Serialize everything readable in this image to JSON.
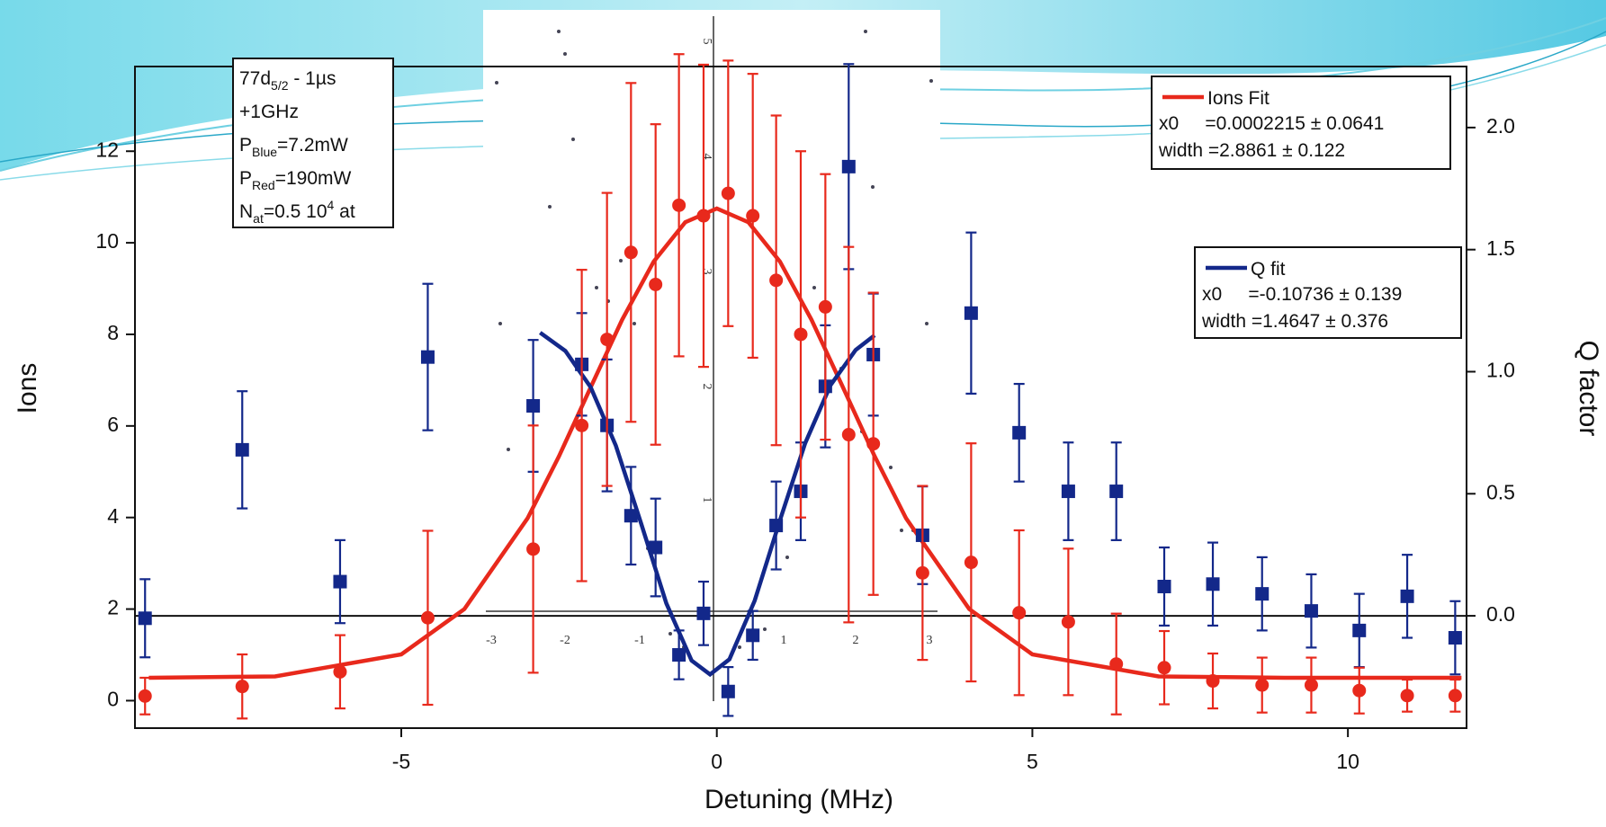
{
  "chart_data": {
    "type": "scatter",
    "xlabel": "Detuning (MHz)",
    "ylabel": "Ions",
    "y2label": "Q factor",
    "xlim": [
      -9.22,
      11.88
    ],
    "ylim": [
      -0.6,
      13.85
    ],
    "y2lim": [
      -0.46,
      2.25
    ],
    "xticks": [
      -5,
      0,
      5,
      10
    ],
    "yticks": [
      0,
      2,
      4,
      6,
      8,
      10,
      12
    ],
    "y2ticks": [
      {
        "value": 0,
        "label": "0.0"
      },
      0.5,
      {
        "value": 1,
        "label": "1.0"
      },
      1.5,
      {
        "value": 2,
        "label": "2.0"
      }
    ],
    "series": [
      {
        "color": "#e8291c",
        "marker": "circle",
        "x": [
          -9.06,
          -7.52,
          -5.97,
          -4.58,
          -2.91,
          -2.14,
          -1.74,
          -1.36,
          -0.97,
          -0.6,
          -0.21,
          0.18,
          0.57,
          0.94,
          1.33,
          1.72,
          2.09,
          2.48,
          3.26,
          4.03,
          4.79,
          5.57,
          6.33,
          7.09,
          7.86,
          8.64,
          9.42,
          10.18,
          10.94,
          11.7
        ],
        "values": [
          0.1,
          0.31,
          0.63,
          1.81,
          3.31,
          6.01,
          7.89,
          9.79,
          9.09,
          10.82,
          10.59,
          11.08,
          10.59,
          9.18,
          8.0,
          8.6,
          5.81,
          5.61,
          2.79,
          3.02,
          1.92,
          1.72,
          0.8,
          0.72,
          0.43,
          0.34,
          0.34,
          0.22,
          0.11,
          0.11
        ],
        "errors": [
          0.4,
          0.7,
          0.8,
          1.9,
          2.7,
          3.4,
          3.2,
          3.7,
          3.5,
          3.3,
          3.3,
          2.9,
          3.1,
          3.6,
          4.0,
          2.9,
          4.1,
          3.3,
          1.9,
          2.6,
          1.8,
          1.6,
          1.1,
          0.8,
          0.6,
          0.6,
          0.6,
          0.5,
          0.35,
          0.35
        ]
      },
      {
        "color": "#13288a",
        "marker": "square",
        "axis": "y2",
        "x": [
          -9.06,
          -7.52,
          -5.97,
          -4.58,
          -2.91,
          -2.14,
          -1.74,
          -1.36,
          -0.97,
          -0.6,
          -0.21,
          0.18,
          0.57,
          0.94,
          1.33,
          1.72,
          2.09,
          2.48,
          3.26,
          4.03,
          4.79,
          5.57,
          6.33,
          7.09,
          7.86,
          8.64,
          9.42,
          10.18,
          10.94,
          11.7
        ],
        "values": [
          -0.01,
          0.68,
          0.14,
          1.06,
          0.86,
          1.03,
          0.78,
          0.41,
          0.28,
          -0.16,
          0.01,
          -0.31,
          -0.08,
          0.37,
          0.51,
          0.94,
          1.84,
          1.07,
          0.33,
          1.24,
          0.75,
          0.51,
          0.51,
          0.12,
          0.13,
          0.09,
          0.02,
          -0.06,
          0.08,
          -0.09
        ],
        "errors": [
          0.16,
          0.24,
          0.17,
          0.3,
          0.27,
          0.21,
          0.27,
          0.2,
          0.2,
          0.1,
          0.13,
          0.1,
          0.1,
          0.18,
          0.2,
          0.25,
          0.42,
          0.25,
          0.2,
          0.33,
          0.2,
          0.2,
          0.2,
          0.16,
          0.17,
          0.15,
          0.15,
          0.15,
          0.17,
          0.15
        ]
      },
      {
        "name": "Ions Fit",
        "color": "#e8291c",
        "marker": "line",
        "x": [
          -9,
          -7,
          -5,
          -4,
          -3,
          -2.5,
          -2,
          -1.5,
          -1,
          -0.5,
          0,
          0.5,
          1,
          1.5,
          2,
          2.5,
          3,
          4,
          5,
          7,
          9,
          11.8
        ],
        "values": [
          0.5,
          0.53,
          1.01,
          2.0,
          3.98,
          5.34,
          6.84,
          8.32,
          9.59,
          10.45,
          10.75,
          10.45,
          9.59,
          8.32,
          6.84,
          5.34,
          3.98,
          2.0,
          1.01,
          0.53,
          0.5,
          0.5
        ],
        "info": [
          "x0     =0.0002215 ± 0.0641",
          "width =2.8861 ± 0.122"
        ]
      },
      {
        "name": "Q fit",
        "color": "#13288a",
        "marker": "line",
        "axis": "y2",
        "x": [
          -2.8,
          -2.4,
          -2,
          -1.6,
          -1.2,
          -0.8,
          -0.4,
          -0.107,
          0.2,
          0.6,
          1,
          1.4,
          1.8,
          2.2,
          2.5
        ],
        "values": [
          1.16,
          1.085,
          0.937,
          0.697,
          0.379,
          0.051,
          -0.183,
          -0.24,
          -0.178,
          0.062,
          0.391,
          0.707,
          0.944,
          1.089,
          1.149
        ],
        "info": [
          "x0     =-0.10736 ± 0.139",
          "width =1.4647 ± 0.376"
        ]
      }
    ],
    "annotation": [
      [
        "77d",
        {
          "text": "5/2",
          "script": "sub"
        },
        " - 1µs"
      ],
      [
        "+1GHz"
      ],
      [
        "P",
        {
          "text": "Blue",
          "script": "sub"
        },
        "=7.2mW"
      ],
      [
        "P",
        {
          "text": "Red",
          "script": "sub"
        },
        "=190mW"
      ],
      [
        "N",
        {
          "text": "at",
          "script": "sub"
        },
        "=0.5 10",
        {
          "text": "4",
          "script": "sup"
        },
        " at"
      ]
    ],
    "inset": {
      "xlabels": [
        "-3",
        "-2",
        "-1",
        "1",
        "2",
        "3"
      ],
      "ylabels": [
        "5",
        "4",
        "3",
        "2",
        "1"
      ]
    }
  }
}
